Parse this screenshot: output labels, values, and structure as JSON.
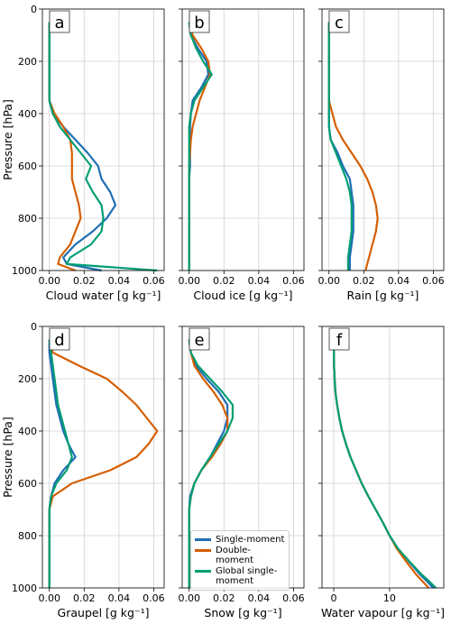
{
  "chart_data": [
    {
      "type": "line",
      "label": "a",
      "xlabel": "Cloud water [g kg⁻¹]",
      "ylabel": "Pressure [hPa]",
      "y": [
        50,
        100,
        150,
        200,
        250,
        300,
        350,
        400,
        450,
        500,
        550,
        600,
        650,
        700,
        750,
        800,
        850,
        900,
        950,
        975,
        1000
      ],
      "xlim": [
        -0.004,
        0.066
      ],
      "ylim": [
        1000,
        0
      ],
      "xticks": [
        {
          "value": 0,
          "label": "0.00"
        },
        0.02,
        0.04,
        0.06
      ],
      "yticks": [
        0,
        200,
        400,
        600,
        800,
        1000
      ],
      "grid": true,
      "series": [
        {
          "color": "#1f6fb4",
          "values": [
            0,
            0,
            0,
            0,
            0,
            0,
            0,
            0.002,
            0.008,
            0.015,
            0.022,
            0.028,
            0.03,
            0.035,
            0.038,
            0.033,
            0.025,
            0.015,
            0.008,
            0.01,
            0.03
          ]
        },
        {
          "color": "#d55e00",
          "values": [
            0,
            0,
            0,
            0,
            0,
            0,
            0,
            0.003,
            0.008,
            0.012,
            0.013,
            0.013,
            0.013,
            0.015,
            0.017,
            0.018,
            0.015,
            0.012,
            0.006,
            0.005,
            0.015
          ]
        },
        {
          "color": "#009e73",
          "values": [
            0,
            0,
            0,
            0,
            0,
            0,
            0,
            0.002,
            0.006,
            0.012,
            0.018,
            0.024,
            0.021,
            0.025,
            0.03,
            0.031,
            0.03,
            0.024,
            0.012,
            0.01,
            0.062
          ]
        }
      ]
    },
    {
      "type": "line",
      "label": "b",
      "xlabel": "Cloud ice [g kg⁻¹]",
      "y": [
        50,
        100,
        150,
        200,
        250,
        300,
        350,
        400,
        450,
        500,
        550,
        600,
        650,
        700,
        750,
        800,
        850,
        900,
        950,
        975,
        1000
      ],
      "xlim": [
        -0.004,
        0.066
      ],
      "ylim": [
        1000,
        0
      ],
      "xticks": [
        {
          "value": 0,
          "label": "0.00"
        },
        0.02,
        0.04,
        0.06
      ],
      "yticks": [
        0,
        200,
        400,
        600,
        800,
        1000
      ],
      "grid": true,
      "series": [
        {
          "color": "#1f6fb4",
          "values": [
            0,
            0.001,
            0.005,
            0.01,
            0.011,
            0.007,
            0.002,
            0.001,
            0.0005,
            0.0005,
            0.0005,
            0.0005,
            0,
            0,
            0,
            0,
            0,
            0,
            0,
            0,
            0
          ]
        },
        {
          "color": "#d55e00",
          "values": [
            0,
            0.002,
            0.007,
            0.011,
            0.012,
            0.009,
            0.006,
            0.004,
            0.002,
            0.001,
            0.0005,
            0,
            0,
            0,
            0,
            0,
            0,
            0,
            0,
            0,
            0
          ]
        },
        {
          "color": "#009e73",
          "values": [
            0,
            0.001,
            0.004,
            0.008,
            0.013,
            0.008,
            0.003,
            0.001,
            0,
            0,
            0,
            0,
            0,
            0,
            0,
            0,
            0,
            0,
            0,
            0,
            0
          ]
        }
      ]
    },
    {
      "type": "line",
      "label": "c",
      "xlabel": "Rain [g kg⁻¹]",
      "y": [
        50,
        100,
        150,
        200,
        250,
        300,
        350,
        400,
        450,
        500,
        550,
        600,
        650,
        700,
        750,
        800,
        850,
        900,
        950,
        975,
        1000
      ],
      "xlim": [
        -0.004,
        0.066
      ],
      "ylim": [
        1000,
        0
      ],
      "xticks": [
        {
          "value": 0,
          "label": "0.00"
        },
        0.02,
        0.04,
        0.06
      ],
      "yticks": [
        0,
        200,
        400,
        600,
        800,
        1000
      ],
      "grid": true,
      "series": [
        {
          "color": "#1f6fb4",
          "values": [
            0,
            0,
            0,
            0,
            0,
            0,
            0,
            0,
            0,
            0.001,
            0.005,
            0.008,
            0.012,
            0.013,
            0.014,
            0.014,
            0.014,
            0.013,
            0.012,
            0.012,
            0.012
          ]
        },
        {
          "color": "#d55e00",
          "values": [
            0,
            0,
            0,
            0,
            0,
            0,
            0,
            0.002,
            0.004,
            0.008,
            0.013,
            0.018,
            0.022,
            0.025,
            0.027,
            0.028,
            0.027,
            0.025,
            0.023,
            0.022,
            0.021
          ]
        },
        {
          "color": "#009e73",
          "values": [
            0,
            0,
            0,
            0,
            0,
            0,
            0,
            0,
            0,
            0.001,
            0.004,
            0.007,
            0.01,
            0.012,
            0.013,
            0.013,
            0.013,
            0.012,
            0.011,
            0.011,
            0.011
          ]
        }
      ]
    },
    {
      "type": "line",
      "label": "d",
      "xlabel": "Graupel [g kg⁻¹]",
      "ylabel": "Pressure [hPa]",
      "y": [
        50,
        100,
        150,
        200,
        250,
        300,
        350,
        400,
        450,
        500,
        550,
        600,
        650,
        700,
        750,
        800,
        850,
        900,
        950,
        975,
        1000
      ],
      "xlim": [
        -0.004,
        0.066
      ],
      "ylim": [
        1000,
        0
      ],
      "xticks": [
        {
          "value": 0,
          "label": "0.00"
        },
        0.02,
        0.04,
        0.06
      ],
      "yticks": [
        0,
        200,
        400,
        600,
        800,
        1000
      ],
      "grid": true,
      "series": [
        {
          "color": "#1f6fb4",
          "values": [
            0,
            0,
            0.001,
            0.002,
            0.003,
            0.004,
            0.006,
            0.008,
            0.011,
            0.015,
            0.008,
            0.003,
            0.001,
            0,
            0,
            0,
            0,
            0,
            0,
            0,
            0
          ]
        },
        {
          "color": "#d55e00",
          "values": [
            0,
            0.002,
            0.017,
            0.033,
            0.042,
            0.05,
            0.056,
            0.062,
            0.057,
            0.05,
            0.035,
            0.013,
            0.002,
            0,
            0,
            0,
            0,
            0,
            0,
            0,
            0
          ]
        },
        {
          "color": "#009e73",
          "values": [
            0,
            0.001,
            0.002,
            0.003,
            0.004,
            0.005,
            0.007,
            0.009,
            0.011,
            0.013,
            0.01,
            0.004,
            0.001,
            0,
            0,
            0,
            0,
            0,
            0,
            0,
            0
          ]
        }
      ]
    },
    {
      "type": "line",
      "label": "e",
      "xlabel": "Snow [g kg⁻¹]",
      "y": [
        50,
        100,
        150,
        200,
        250,
        300,
        350,
        400,
        450,
        500,
        550,
        600,
        650,
        700,
        750,
        800,
        850,
        900,
        950,
        975,
        1000
      ],
      "xlim": [
        -0.004,
        0.066
      ],
      "ylim": [
        1000,
        0
      ],
      "xticks": [
        {
          "value": 0,
          "label": "0.00"
        },
        0.02,
        0.04,
        0.06
      ],
      "yticks": [
        0,
        200,
        400,
        600,
        800,
        1000
      ],
      "grid": true,
      "legend": "lower left",
      "series": [
        {
          "name": "Single-moment",
          "color": "#1f6fb4",
          "values": [
            0,
            0.001,
            0.004,
            0.01,
            0.017,
            0.022,
            0.022,
            0.02,
            0.016,
            0.012,
            0.007,
            0.003,
            0.0005,
            0,
            0,
            0,
            0,
            0,
            0,
            0,
            0
          ]
        },
        {
          "name": "Double-moment",
          "color": "#d55e00",
          "values": [
            0,
            0.001,
            0.003,
            0.008,
            0.014,
            0.019,
            0.022,
            0.022,
            0.018,
            0.013,
            0.007,
            0.003,
            0.001,
            0,
            0,
            0,
            0,
            0,
            0,
            0,
            0
          ]
        },
        {
          "name": "Global single-moment",
          "color": "#009e73",
          "values": [
            0,
            0.001,
            0.005,
            0.012,
            0.019,
            0.025,
            0.025,
            0.022,
            0.017,
            0.012,
            0.007,
            0.003,
            0.001,
            0,
            0,
            0,
            0,
            0,
            0,
            0,
            0
          ]
        }
      ]
    },
    {
      "type": "line",
      "label": "f",
      "xlabel": "Water vapour [g kg⁻¹]",
      "y": [
        50,
        100,
        150,
        200,
        250,
        300,
        350,
        400,
        450,
        500,
        550,
        600,
        650,
        700,
        750,
        800,
        850,
        900,
        950,
        975,
        1000
      ],
      "xlim": [
        -2.1,
        19.7
      ],
      "ylim": [
        1000,
        0
      ],
      "xticks": [
        0,
        10
      ],
      "yticks": [
        0,
        200,
        400,
        600,
        800,
        1000
      ],
      "grid": true,
      "series": [
        {
          "color": "#1f6fb4",
          "values": [
            0,
            0.02,
            0.05,
            0.15,
            0.3,
            0.6,
            1.0,
            1.5,
            2.2,
            3.0,
            4.0,
            5.0,
            6.2,
            7.5,
            8.8,
            10.0,
            11.5,
            13.5,
            15.5,
            16.7,
            17.8
          ]
        },
        {
          "color": "#d55e00",
          "values": [
            0,
            0.02,
            0.05,
            0.15,
            0.3,
            0.6,
            1.0,
            1.5,
            2.2,
            3.0,
            4.0,
            5.0,
            6.2,
            7.5,
            8.8,
            10.0,
            11.3,
            13.0,
            14.8,
            15.9,
            17.0
          ]
        },
        {
          "color": "#009e73",
          "values": [
            0,
            0.02,
            0.05,
            0.15,
            0.3,
            0.6,
            1.0,
            1.5,
            2.2,
            3.0,
            4.0,
            5.0,
            6.2,
            7.5,
            8.8,
            10.0,
            11.5,
            13.6,
            15.8,
            17.1,
            18.3
          ]
        }
      ]
    }
  ]
}
